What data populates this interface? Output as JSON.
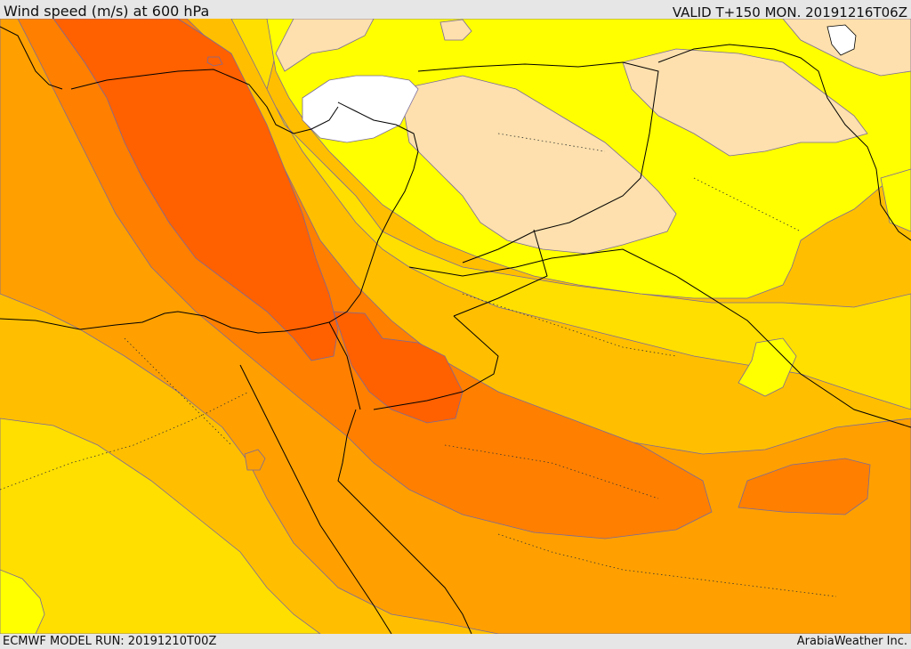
{
  "header": {
    "title": "Wind speed (m/s) at 600 hPa",
    "valid": "VALID T+150 MON. 20191216T06Z"
  },
  "footer": {
    "model_run": "ECMWF MODEL RUN: 20191210T00Z",
    "credit": "ArabiaWeather Inc."
  },
  "map": {
    "field": "wind speed",
    "colors": {
      "white": "#ffffff",
      "wheat": "#fde0ad",
      "yellow": "#ffff00",
      "gold": "#ffdf00",
      "amber": "#ffbf00",
      "orange_light": "#ffa000",
      "orange": "#ff8000",
      "orange_dark": "#ff6000",
      "contour": "#7a6a9a",
      "border": "#000000"
    }
  }
}
